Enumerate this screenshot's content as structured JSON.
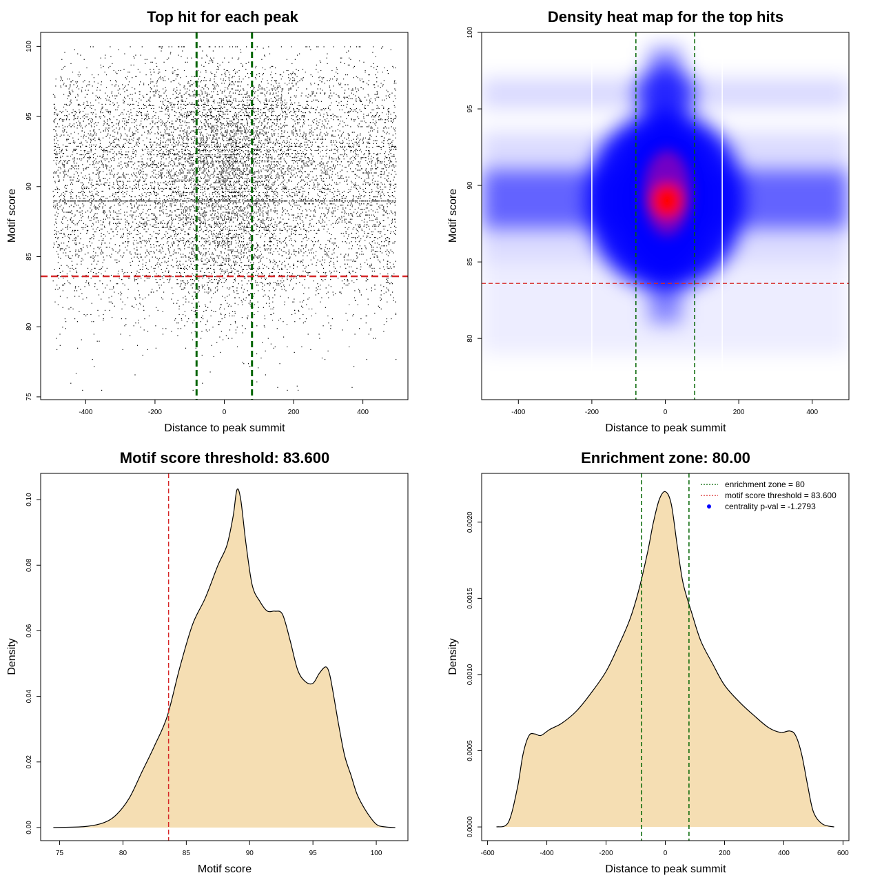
{
  "chart_data": [
    {
      "type": "scatter",
      "title": "Top hit for each peak",
      "xlabel": "Distance to peak summit",
      "ylabel": "Motif score",
      "xlim": [
        -530,
        530
      ],
      "ylim": [
        74.8,
        101
      ],
      "x_ticks": [
        -400,
        -200,
        0,
        200,
        400
      ],
      "y_ticks": [
        75,
        80,
        85,
        90,
        95,
        100
      ],
      "x_tick_labels": [
        "-400",
        "-200",
        "0",
        "200",
        "400"
      ],
      "y_tick_labels": [
        "75",
        "80",
        "85",
        "90",
        "95",
        "100"
      ],
      "points_note": "",
      "vlines": [
        -80,
        80
      ],
      "hline": 83.6,
      "colors": {
        "points": "#000000",
        "vlines": "#006400",
        "hline": "#d62728"
      }
    },
    {
      "type": "heatmap",
      "title": "Density heat map for the top hits",
      "xlabel": "Distance to peak summit",
      "ylabel": "Motif score",
      "xlim": [
        -500,
        500
      ],
      "ylim": [
        76,
        100
      ],
      "x_ticks": [
        -400,
        -200,
        0,
        200,
        400
      ],
      "y_ticks": [
        80,
        85,
        90,
        95,
        100
      ],
      "x_tick_labels": [
        "-400",
        "-200",
        "0",
        "200",
        "400"
      ],
      "y_tick_labels": [
        "80",
        "85",
        "90",
        "95",
        "100"
      ],
      "peak": {
        "x": 0,
        "y": 89
      },
      "vlines": [
        -80,
        80
      ],
      "hline": 83.6,
      "colors": {
        "low": "#ffffff",
        "mid": "#0000ff",
        "high": "#ff0000",
        "vlines": "#006400",
        "hline": "#d62728"
      }
    },
    {
      "type": "area",
      "title": "Motif score threshold: 83.600",
      "xlabel": "Motif score",
      "ylabel": "Density",
      "xlim": [
        73.5,
        102.5
      ],
      "ylim": [
        -0.004,
        0.108
      ],
      "x_ticks": [
        75,
        80,
        85,
        90,
        95,
        100
      ],
      "y_ticks": [
        0.0,
        0.02,
        0.04,
        0.06,
        0.08,
        0.1
      ],
      "x_tick_labels": [
        "75",
        "80",
        "85",
        "90",
        "95",
        "100"
      ],
      "y_tick_labels": [
        "0.00",
        "0.02",
        "0.04",
        "0.06",
        "0.08",
        "0.10"
      ],
      "x": [
        74.5,
        77,
        78.5,
        79.5,
        80.5,
        81.5,
        82.5,
        83.5,
        84.5,
        85.5,
        86.5,
        87.5,
        88.2,
        88.7,
        89,
        89.3,
        89.7,
        90.2,
        90.8,
        91.4,
        92,
        92.6,
        93.2,
        93.8,
        94.4,
        95,
        95.5,
        96,
        96.3,
        96.6,
        97,
        97.5,
        98,
        98.5,
        99.2,
        100,
        100.7,
        101.5
      ],
      "y": [
        0.0,
        0.0003,
        0.0015,
        0.004,
        0.009,
        0.017,
        0.025,
        0.034,
        0.049,
        0.062,
        0.07,
        0.08,
        0.086,
        0.095,
        0.103,
        0.1,
        0.087,
        0.074,
        0.069,
        0.066,
        0.066,
        0.065,
        0.057,
        0.048,
        0.0445,
        0.044,
        0.047,
        0.049,
        0.047,
        0.041,
        0.032,
        0.022,
        0.016,
        0.01,
        0.005,
        0.001,
        0.0002,
        0.0
      ],
      "vline": 83.6,
      "colors": {
        "fill": "#f5deb3",
        "line": "#000000",
        "vline": "#d62728"
      }
    },
    {
      "type": "area",
      "title": "Enrichment zone: 80.00",
      "xlabel": "Distance to peak summit",
      "ylabel": "Density",
      "xlim": [
        -620,
        620
      ],
      "ylim": [
        -9e-05,
        0.00232
      ],
      "x_ticks": [
        -600,
        -400,
        -200,
        0,
        200,
        400,
        600
      ],
      "y_ticks": [
        0.0,
        0.0005,
        0.001,
        0.0015,
        0.002
      ],
      "x_tick_labels": [
        "-600",
        "-400",
        "-200",
        "0",
        "200",
        "400",
        "600"
      ],
      "y_tick_labels": [
        "0.0000",
        "0.0005",
        "0.0010",
        "0.0015",
        "0.0020"
      ],
      "x": [
        -570,
        -530,
        -500,
        -480,
        -460,
        -440,
        -420,
        -390,
        -350,
        -300,
        -250,
        -200,
        -160,
        -120,
        -90,
        -60,
        -40,
        -20,
        0,
        20,
        40,
        60,
        90,
        120,
        160,
        200,
        250,
        300,
        350,
        390,
        420,
        440,
        460,
        480,
        500,
        530,
        570
      ],
      "y": [
        0.0,
        3e-05,
        0.00025,
        0.00048,
        0.0006,
        0.00061,
        0.0006,
        0.00064,
        0.00068,
        0.00076,
        0.00088,
        0.00102,
        0.00118,
        0.00136,
        0.00155,
        0.0018,
        0.002,
        0.00215,
        0.0022,
        0.00212,
        0.00185,
        0.0016,
        0.0014,
        0.00122,
        0.00107,
        0.00093,
        0.00082,
        0.00073,
        0.00065,
        0.00062,
        0.00063,
        0.0006,
        0.00048,
        0.00028,
        0.0001,
        2e-05,
        0.0
      ],
      "vlines": [
        -80,
        80
      ],
      "legend": {
        "position": "top-right",
        "items": [
          {
            "label": "enrichment zone = 80",
            "color": "#006400",
            "style": "dotted-line"
          },
          {
            "label": "motif score threshold = 83.600",
            "color": "#d62728",
            "style": "dotted-line"
          },
          {
            "label": "centrality p-val = -1.2793",
            "color": "#0000ff",
            "style": "point"
          }
        ]
      },
      "colors": {
        "fill": "#f5deb3",
        "line": "#000000",
        "vlines": "#006400"
      }
    }
  ]
}
